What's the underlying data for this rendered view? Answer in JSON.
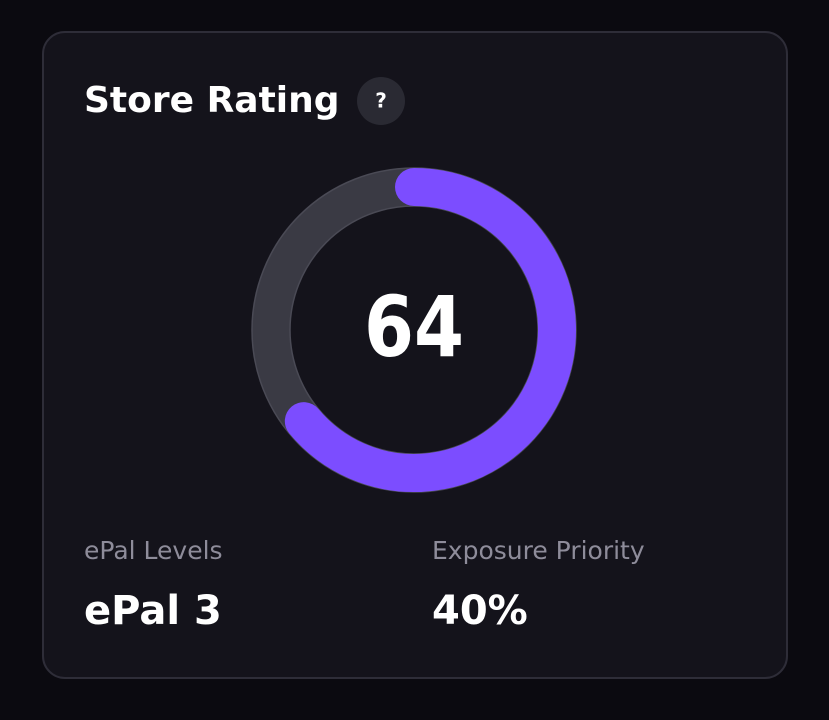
{
  "header": {
    "title": "Store Rating",
    "help": "?"
  },
  "rating": {
    "value": 64,
    "max": 100
  },
  "stats": [
    {
      "label": "ePal Levels",
      "value": "ePal 3"
    },
    {
      "label": "Exposure Priority",
      "value": "40%"
    }
  ]
}
